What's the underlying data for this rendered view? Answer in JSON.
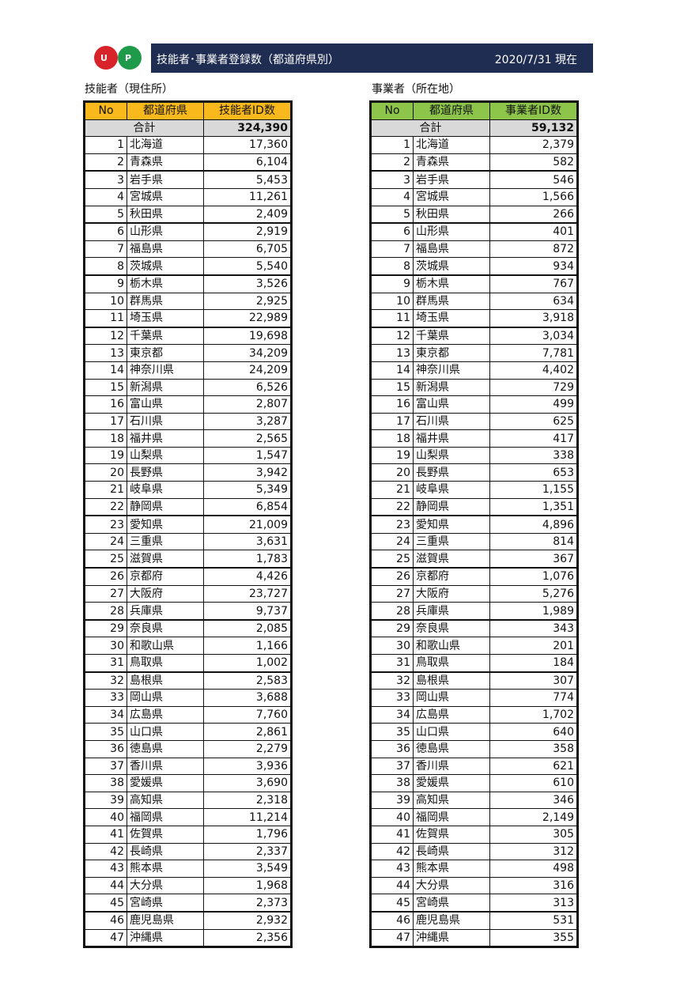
{
  "header": {
    "logo_letters": [
      "U",
      "P"
    ],
    "title": "技能者･事業者登録数（都道府県別）",
    "date": "2020/7/31 現在",
    "colors": {
      "bar": "#1f2d52",
      "logo_red": "#d8232a",
      "logo_green": "#1f9a4a"
    }
  },
  "workers": {
    "subtitle": "技能者（現住所）",
    "columns": [
      "No",
      "都道府県",
      "技能者ID数"
    ],
    "total_label": "合計",
    "total": "324,390",
    "header_color": "#f9b91c",
    "values": [
      "17,360",
      "6,104",
      "5,453",
      "11,261",
      "2,409",
      "2,919",
      "6,705",
      "5,540",
      "3,526",
      "2,925",
      "22,989",
      "19,698",
      "34,209",
      "24,209",
      "6,526",
      "2,807",
      "3,287",
      "2,565",
      "1,547",
      "3,942",
      "5,349",
      "6,854",
      "21,009",
      "3,631",
      "1,783",
      "4,426",
      "23,727",
      "9,737",
      "2,085",
      "1,166",
      "1,002",
      "2,583",
      "3,688",
      "7,760",
      "2,861",
      "2,279",
      "3,936",
      "3,690",
      "2,318",
      "11,214",
      "1,796",
      "2,337",
      "3,549",
      "1,968",
      "2,373",
      "2,932",
      "2,356"
    ]
  },
  "businesses": {
    "subtitle": "事業者（所在地）",
    "columns": [
      "No",
      "都道府県",
      "事業者ID数"
    ],
    "total_label": "合計",
    "total": "59,132",
    "header_color": "#8dc54b",
    "values": [
      "2,379",
      "582",
      "546",
      "1,566",
      "266",
      "401",
      "872",
      "934",
      "767",
      "634",
      "3,918",
      "3,034",
      "7,781",
      "4,402",
      "729",
      "499",
      "625",
      "417",
      "338",
      "653",
      "1,155",
      "1,351",
      "4,896",
      "814",
      "367",
      "1,076",
      "5,276",
      "1,989",
      "343",
      "201",
      "184",
      "307",
      "774",
      "1,702",
      "640",
      "358",
      "621",
      "610",
      "346",
      "2,149",
      "305",
      "312",
      "498",
      "316",
      "313",
      "531",
      "355"
    ]
  },
  "prefectures": [
    "北海道",
    "青森県",
    "岩手県",
    "宮城県",
    "秋田県",
    "山形県",
    "福島県",
    "茨城県",
    "栃木県",
    "群馬県",
    "埼玉県",
    "千葉県",
    "東京都",
    "神奈川県",
    "新潟県",
    "富山県",
    "石川県",
    "福井県",
    "山梨県",
    "長野県",
    "岐阜県",
    "静岡県",
    "愛知県",
    "三重県",
    "滋賀県",
    "京都府",
    "大阪府",
    "兵庫県",
    "奈良県",
    "和歌山県",
    "鳥取県",
    "島根県",
    "岡山県",
    "広島県",
    "山口県",
    "徳島県",
    "香川県",
    "愛媛県",
    "高知県",
    "福岡県",
    "佐賀県",
    "長崎県",
    "熊本県",
    "大分県",
    "宮崎県",
    "鹿児島県",
    "沖縄県"
  ]
}
